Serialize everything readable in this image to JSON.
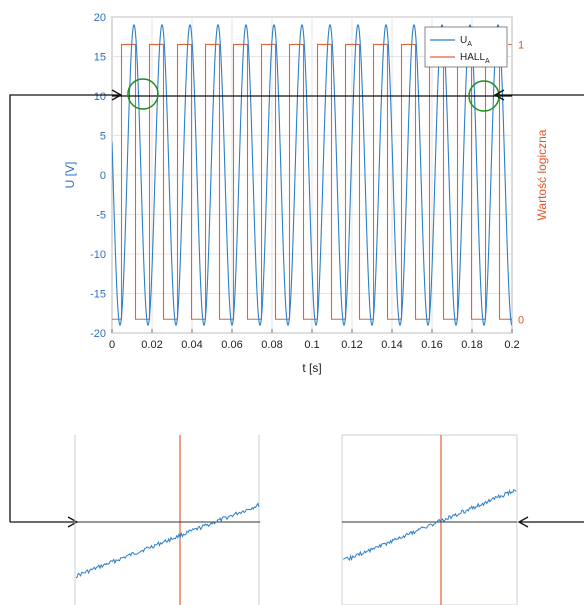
{
  "colors": {
    "left_axis": "#2e6fbf",
    "right_axis": "#e2552b",
    "ua": "#2c7fc8",
    "hall": "#e0633a",
    "marker": "#1e8c1e",
    "arrow": "#111111",
    "zoom_axes": "#c9d0d6"
  },
  "chart_data": {
    "type": "line",
    "title": "",
    "xlabel": "t [s]",
    "ylabel_left": "U [V]",
    "ylabel_right": "Wartość logiczna",
    "xlim": [
      0,
      0.2
    ],
    "ylim_left": [
      -20,
      20
    ],
    "ylim_right": [
      -0.05,
      1.1
    ],
    "x_ticks": [
      "0",
      "0.02",
      "0.04",
      "0.06",
      "0.08",
      "0.1",
      "0.12",
      "0.14",
      "0.16",
      "0.18",
      "0.2"
    ],
    "y_ticks_left": [
      "20",
      "15",
      "10",
      "5",
      "0",
      "-5",
      "-10",
      "-15",
      "-20"
    ],
    "y_ticks_right": [
      "1",
      "0"
    ],
    "grid": true,
    "legend_position": "top-right",
    "series": [
      {
        "name": "U",
        "name_sub": "A",
        "axis": "left",
        "kind": "sine",
        "amplitude": 19,
        "period": 0.014,
        "phase_zero_crossing": 0.0075
      },
      {
        "name": "HALL",
        "name_sub": "A",
        "axis": "right",
        "kind": "square",
        "low": 0,
        "high": 1,
        "period": 0.014,
        "high_start": 0.00475
      }
    ],
    "reference_line": {
      "y": 10,
      "axis": "left"
    },
    "markers": [
      {
        "shape": "circle",
        "x": 0.016,
        "y": 10
      },
      {
        "shape": "circle",
        "x": 0.186,
        "y": 10
      }
    ],
    "insets": [
      {
        "view": "zoom at left marker",
        "trace": "U_A noisy rising edge",
        "trigger_line": "HALL_A edge"
      },
      {
        "view": "zoom at right marker",
        "trace": "U_A noisy rising edge",
        "trigger_line": "HALL_A edge"
      }
    ]
  }
}
